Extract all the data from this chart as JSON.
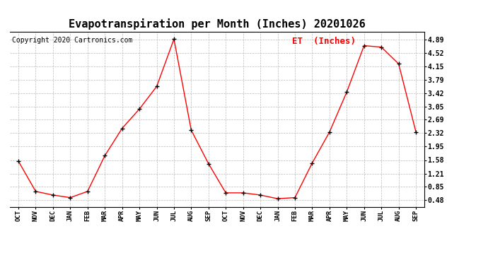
{
  "title": "Evapotranspiration per Month (Inches) 20201026",
  "copyright_text": "Copyright 2020 Cartronics.com",
  "legend_label": "ET  (Inches)",
  "x_labels": [
    "OCT",
    "NOV",
    "DEC",
    "JAN",
    "FEB",
    "MAR",
    "APR",
    "MAY",
    "JUN",
    "JUL",
    "AUG",
    "SEP",
    "OCT",
    "NOV",
    "DEC",
    "JAN",
    "FEB",
    "MAR",
    "APR",
    "MAY",
    "JUN",
    "JUL",
    "AUG",
    "SEP"
  ],
  "y_values": [
    1.55,
    0.72,
    0.62,
    0.55,
    0.72,
    1.7,
    2.45,
    2.98,
    3.6,
    4.9,
    2.4,
    1.48,
    0.68,
    0.68,
    0.62,
    0.52,
    0.55,
    1.5,
    2.35,
    3.45,
    4.72,
    4.68,
    4.22,
    2.35
  ],
  "y_ticks": [
    0.48,
    0.85,
    1.21,
    1.58,
    1.95,
    2.32,
    2.69,
    3.05,
    3.42,
    3.79,
    4.15,
    4.52,
    4.89
  ],
  "y_lim": [
    0.3,
    5.1
  ],
  "line_color": "red",
  "marker_color": "black",
  "marker": "+",
  "grid_color": "#bbbbbb",
  "background_color": "#ffffff",
  "title_fontsize": 11,
  "copyright_fontsize": 7,
  "legend_color": "red",
  "legend_fontsize": 9,
  "tick_fontsize": 7,
  "x_tick_fontsize": 6.5
}
